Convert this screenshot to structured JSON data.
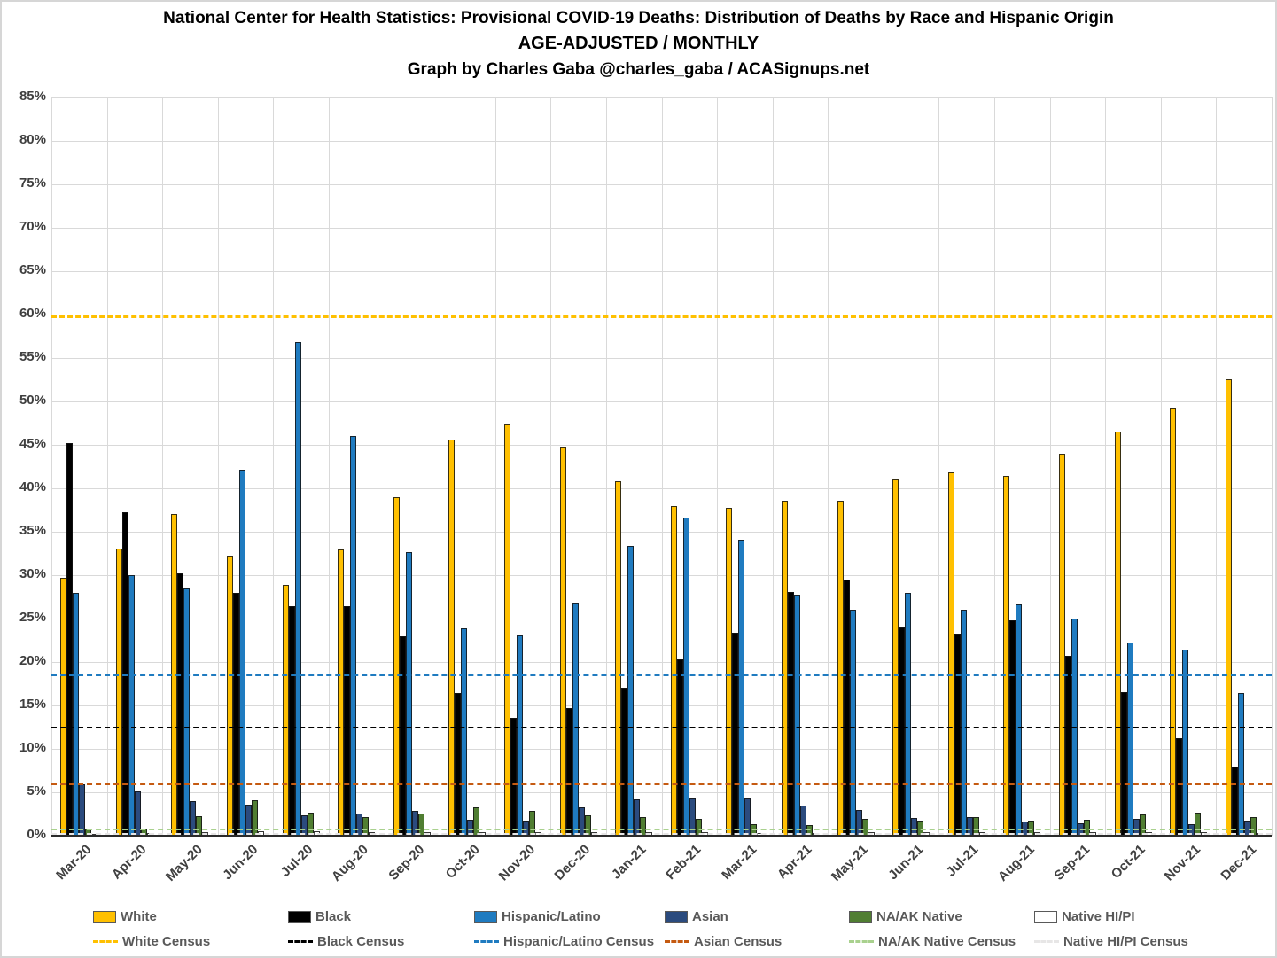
{
  "title": {
    "line1": "National Center for Health Statistics: Provisional COVID-19 Deaths: Distribution of Deaths by Race and Hispanic Origin",
    "line2": "AGE-ADJUSTED / MONTHLY",
    "line3": "Graph by Charles Gaba @charles_gaba / ACASignups.net"
  },
  "chart_data": {
    "type": "bar",
    "categories": [
      "Mar-20",
      "Apr-20",
      "May-20",
      "Jun-20",
      "Jul-20",
      "Aug-20",
      "Sep-20",
      "Oct-20",
      "Nov-20",
      "Dec-20",
      "Jan-21",
      "Feb-21",
      "Mar-21",
      "Apr-21",
      "May-21",
      "Jun-21",
      "Jul-21",
      "Aug-21",
      "Sep-21",
      "Oct-21",
      "Nov-21",
      "Dec-21"
    ],
    "series": [
      {
        "name": "White",
        "color": "#FFC000",
        "values": [
          29.7,
          33.1,
          37.0,
          32.2,
          28.9,
          33.0,
          39.0,
          45.6,
          47.4,
          44.8,
          40.8,
          38.0,
          37.8,
          38.6,
          38.6,
          41.0,
          41.8,
          41.4,
          44.0,
          46.5,
          49.3,
          52.6
        ]
      },
      {
        "name": "Black",
        "color": "#000000",
        "values": [
          45.2,
          37.3,
          30.2,
          28.0,
          26.4,
          26.4,
          23.0,
          16.4,
          13.6,
          14.7,
          17.0,
          20.3,
          23.4,
          28.1,
          29.5,
          24.0,
          23.3,
          24.8,
          20.7,
          16.5,
          11.2,
          8.0
        ]
      },
      {
        "name": "Hispanic/Latino",
        "color": "#1F7BC0",
        "values": [
          28.0,
          30.0,
          28.5,
          42.1,
          56.8,
          46.0,
          32.7,
          23.9,
          23.1,
          26.8,
          33.4,
          36.6,
          34.1,
          27.8,
          26.0,
          28.0,
          26.0,
          26.6,
          25.0,
          22.3,
          21.4,
          16.4
        ]
      },
      {
        "name": "Asian",
        "color": "#2B4B7E",
        "values": [
          5.9,
          5.1,
          4.0,
          3.6,
          2.4,
          2.6,
          2.9,
          1.8,
          1.7,
          3.3,
          4.2,
          4.3,
          4.3,
          3.5,
          3.0,
          2.0,
          2.1,
          1.6,
          1.4,
          1.9,
          1.3,
          1.7
        ]
      },
      {
        "name": "NA/AK Native",
        "color": "#507E32",
        "values": [
          0.8,
          0.8,
          2.3,
          4.1,
          2.7,
          2.1,
          2.6,
          3.3,
          2.9,
          2.4,
          2.1,
          1.9,
          1.3,
          1.2,
          1.9,
          1.7,
          2.1,
          1.7,
          1.8,
          2.5,
          2.7,
          2.1
        ]
      },
      {
        "name": "Native HI/PI",
        "color": "#FFFFFF",
        "values": [
          0.2,
          0.3,
          0.4,
          0.5,
          0.5,
          0.4,
          0.4,
          0.4,
          0.4,
          0.4,
          0.4,
          0.4,
          0.3,
          0.3,
          0.4,
          0.4,
          0.4,
          0.4,
          0.4,
          0.4,
          0.4,
          0.3
        ]
      }
    ],
    "census_lines": [
      {
        "name": "White Census",
        "color": "#FFC000",
        "value": 59.7
      },
      {
        "name": "Black Census",
        "color": "#000000",
        "value": 12.5
      },
      {
        "name": "Hispanic/Latino Census",
        "color": "#1F7BC0",
        "value": 18.5
      },
      {
        "name": "Asian Census",
        "color": "#C55A11",
        "value": 5.9
      },
      {
        "name": "NA/AK Native Census",
        "color": "#A9D18E",
        "value": 0.7
      },
      {
        "name": "Native HI/PI Census",
        "color": "#E7E6E6",
        "value": 0.2
      }
    ],
    "ylim": [
      0,
      85
    ],
    "ytick_step": 5,
    "ytick_suffix": "%",
    "grid": true,
    "legend_position": "bottom"
  }
}
